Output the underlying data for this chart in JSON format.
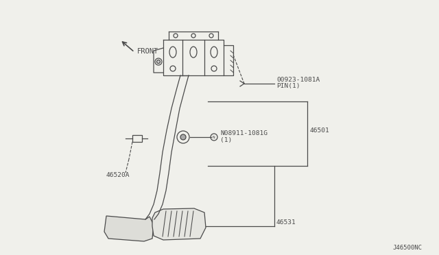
{
  "bg_color": "#f0f0eb",
  "line_color": "#4a4a4a",
  "text_color": "#4a4a4a",
  "fig_width": 6.4,
  "fig_height": 3.72,
  "labels": {
    "front": "FRONT",
    "part1_line1": "00923-1081A",
    "part1_line2": "PIN(1)",
    "part2_line1": "N08911-1081G",
    "part2_line2": "(1)",
    "part3": "46520A",
    "part4": "46501",
    "part5": "46531",
    "watermark": "J46500NC"
  }
}
